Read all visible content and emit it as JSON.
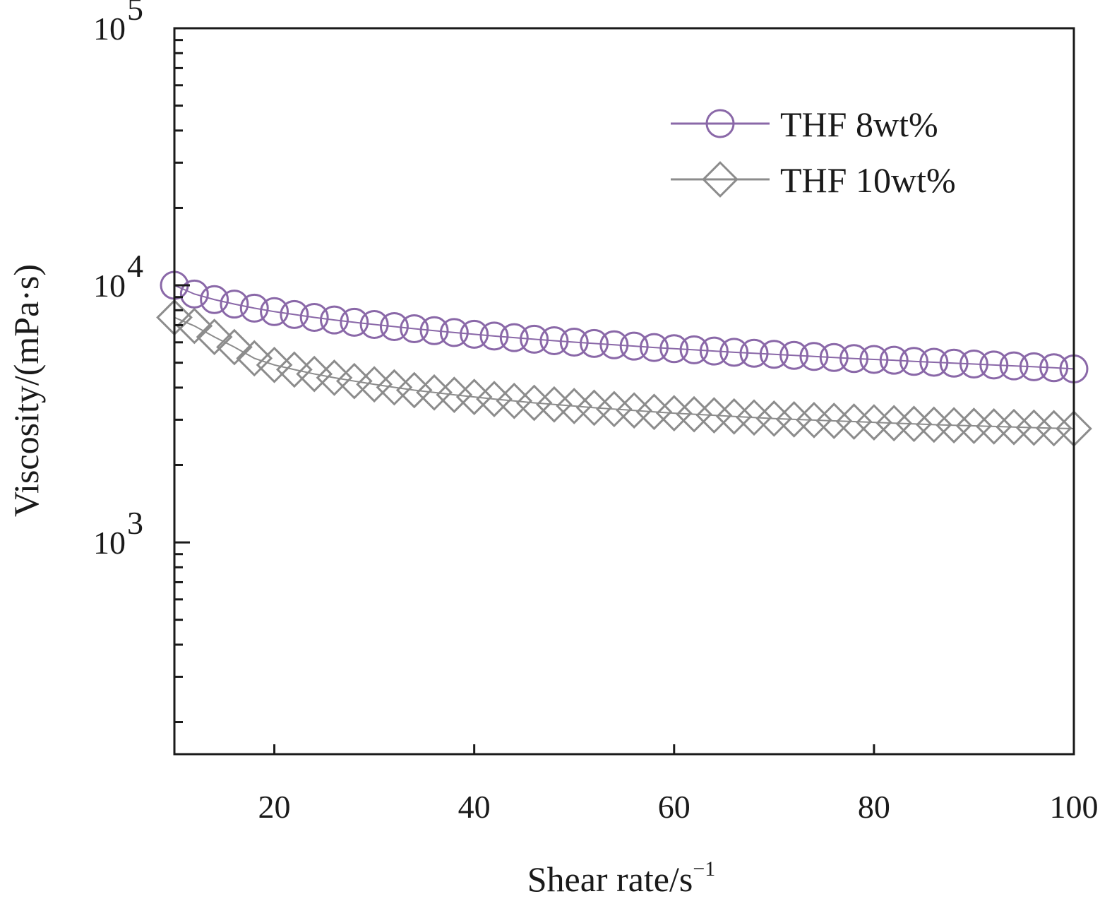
{
  "chart_data": {
    "type": "scatter",
    "title": "",
    "xlabel": "Shear rate/s",
    "xlabel_superscript": "−1",
    "ylabel": "Viscosity/(mPa·s)",
    "xlim": [
      10,
      100
    ],
    "ylim": [
      150,
      100000
    ],
    "yscale": "log",
    "grid": false,
    "legend_position": "top-right",
    "x_ticks": [
      {
        "value": 20,
        "label": "20"
      },
      {
        "value": 40,
        "label": "40"
      },
      {
        "value": 60,
        "label": "60"
      },
      {
        "value": 80,
        "label": "80"
      },
      {
        "value": 100,
        "label": "100"
      }
    ],
    "y_ticks": [
      {
        "value": 1000,
        "base": "10",
        "exp": "3"
      },
      {
        "value": 10000,
        "base": "10",
        "exp": "4"
      },
      {
        "value": 100000,
        "base": "10",
        "exp": "5"
      }
    ],
    "x_start": 10,
    "x_step": 2,
    "series": [
      {
        "name": "THF 8wt%",
        "marker": "circle",
        "color": "#8a68a8",
        "values": [
          10000,
          9250,
          8800,
          8450,
          8150,
          7900,
          7700,
          7500,
          7330,
          7180,
          7040,
          6910,
          6780,
          6660,
          6550,
          6450,
          6350,
          6260,
          6170,
          6090,
          6010,
          5940,
          5870,
          5800,
          5730,
          5670,
          5610,
          5550,
          5490,
          5440,
          5390,
          5340,
          5290,
          5240,
          5190,
          5150,
          5110,
          5060,
          5020,
          4980,
          4940,
          4900,
          4860,
          4820,
          4780,
          4730
        ]
      },
      {
        "name": "THF 10wt%",
        "marker": "diamond",
        "color": "#8c8c8c",
        "values": [
          7500,
          6950,
          6300,
          5750,
          5200,
          4900,
          4700,
          4520,
          4370,
          4240,
          4120,
          4010,
          3910,
          3830,
          3750,
          3680,
          3610,
          3550,
          3490,
          3440,
          3390,
          3340,
          3300,
          3260,
          3220,
          3180,
          3150,
          3120,
          3090,
          3060,
          3030,
          3010,
          2990,
          2970,
          2950,
          2930,
          2910,
          2890,
          2870,
          2855,
          2840,
          2825,
          2810,
          2795,
          2780,
          2770
        ]
      }
    ]
  }
}
